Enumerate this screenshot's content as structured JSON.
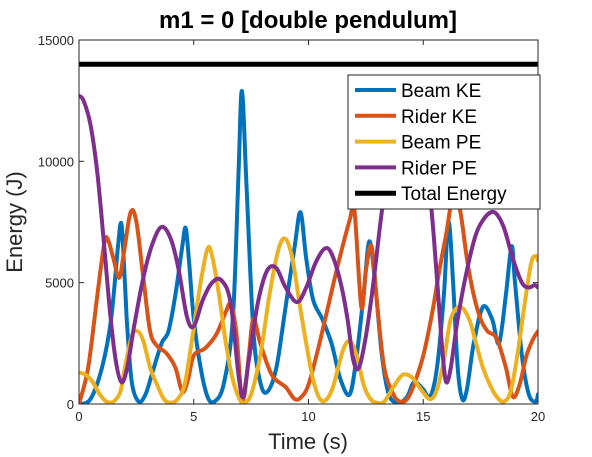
{
  "chart_data": {
    "type": "line",
    "title": "m1 = 0 [double pendulum]",
    "xlabel": "Time (s)",
    "ylabel": "Energy (J)",
    "xlim": [
      0,
      20
    ],
    "ylim": [
      0,
      15000
    ],
    "xticks": [
      0,
      5,
      10,
      15,
      20
    ],
    "yticks": [
      0,
      5000,
      10000,
      15000
    ],
    "grid": false,
    "legend_position": "top-right",
    "series": [
      {
        "name": "Beam KE",
        "color": "#0072BD",
        "points": [
          [
            0,
            0
          ],
          [
            0.5,
            200
          ],
          [
            1.0,
            1500
          ],
          [
            1.4,
            3500
          ],
          [
            1.7,
            6500
          ],
          [
            1.85,
            7400
          ],
          [
            2.0,
            5000
          ],
          [
            2.1,
            3200
          ],
          [
            2.3,
            900
          ],
          [
            2.6,
            100
          ],
          [
            2.9,
            400
          ],
          [
            3.2,
            1300
          ],
          [
            3.6,
            2500
          ],
          [
            3.9,
            3000
          ],
          [
            4.2,
            4500
          ],
          [
            4.5,
            6500
          ],
          [
            4.65,
            7250
          ],
          [
            4.8,
            5800
          ],
          [
            5.0,
            3500
          ],
          [
            5.3,
            1500
          ],
          [
            5.6,
            300
          ],
          [
            5.9,
            100
          ],
          [
            6.3,
            800
          ],
          [
            6.7,
            3500
          ],
          [
            6.95,
            9500
          ],
          [
            7.1,
            12900
          ],
          [
            7.3,
            9000
          ],
          [
            7.6,
            3000
          ],
          [
            7.9,
            900
          ],
          [
            8.2,
            500
          ],
          [
            8.6,
            1500
          ],
          [
            9.0,
            4000
          ],
          [
            9.4,
            6500
          ],
          [
            9.65,
            7900
          ],
          [
            9.9,
            6000
          ],
          [
            10.2,
            4300
          ],
          [
            10.6,
            3500
          ],
          [
            11.0,
            2500
          ],
          [
            11.4,
            1000
          ],
          [
            11.8,
            400
          ],
          [
            12.1,
            2000
          ],
          [
            12.4,
            4500
          ],
          [
            12.65,
            6700
          ],
          [
            12.9,
            5000
          ],
          [
            13.2,
            2000
          ],
          [
            13.5,
            400
          ],
          [
            13.9,
            50
          ],
          [
            14.3,
            300
          ],
          [
            14.6,
            900
          ],
          [
            15.0,
            600
          ],
          [
            15.3,
            300
          ],
          [
            15.6,
            1500
          ],
          [
            15.9,
            4500
          ],
          [
            16.1,
            7500
          ],
          [
            16.3,
            5000
          ],
          [
            16.5,
            1500
          ],
          [
            16.7,
            200
          ],
          [
            16.9,
            600
          ],
          [
            17.2,
            2500
          ],
          [
            17.6,
            4000
          ],
          [
            18.0,
            3500
          ],
          [
            18.3,
            2500
          ],
          [
            18.6,
            4500
          ],
          [
            18.85,
            6500
          ],
          [
            19.0,
            5000
          ],
          [
            19.3,
            2000
          ],
          [
            19.6,
            400
          ],
          [
            19.9,
            100
          ],
          [
            20.0,
            400
          ]
        ]
      },
      {
        "name": "Rider KE",
        "color": "#D95319",
        "points": [
          [
            0,
            0
          ],
          [
            0.4,
            1500
          ],
          [
            0.8,
            4500
          ],
          [
            1.1,
            6600
          ],
          [
            1.25,
            6800
          ],
          [
            1.5,
            6000
          ],
          [
            1.75,
            5200
          ],
          [
            1.95,
            6200
          ],
          [
            2.25,
            7900
          ],
          [
            2.5,
            7500
          ],
          [
            2.8,
            5200
          ],
          [
            3.1,
            3000
          ],
          [
            3.4,
            2400
          ],
          [
            3.8,
            2100
          ],
          [
            4.2,
            1500
          ],
          [
            4.5,
            500
          ],
          [
            4.75,
            1000
          ],
          [
            5.0,
            2000
          ],
          [
            5.5,
            2300
          ],
          [
            6.0,
            2900
          ],
          [
            6.4,
            3800
          ],
          [
            6.6,
            4100
          ],
          [
            6.85,
            3000
          ],
          [
            7.05,
            600
          ],
          [
            7.2,
            300
          ],
          [
            7.4,
            2000
          ],
          [
            7.6,
            3500
          ],
          [
            7.9,
            2500
          ],
          [
            8.4,
            1200
          ],
          [
            9.0,
            700
          ],
          [
            9.4,
            200
          ],
          [
            9.7,
            300
          ],
          [
            10.0,
            800
          ],
          [
            10.4,
            2200
          ],
          [
            10.8,
            3800
          ],
          [
            11.3,
            5800
          ],
          [
            11.8,
            7600
          ],
          [
            12.0,
            8000
          ],
          [
            12.3,
            4000
          ],
          [
            12.5,
            5500
          ],
          [
            12.75,
            6500
          ],
          [
            13.0,
            4000
          ],
          [
            13.3,
            1500
          ],
          [
            13.7,
            400
          ],
          [
            14.0,
            100
          ],
          [
            14.3,
            200
          ],
          [
            14.6,
            800
          ],
          [
            15.0,
            2000
          ],
          [
            15.4,
            3800
          ],
          [
            15.7,
            5500
          ],
          [
            16.0,
            7000
          ],
          [
            16.3,
            8600
          ],
          [
            16.6,
            8000
          ],
          [
            16.9,
            6000
          ],
          [
            17.2,
            4500
          ],
          [
            17.5,
            3500
          ],
          [
            17.8,
            3000
          ],
          [
            18.2,
            2700
          ],
          [
            18.6,
            1500
          ],
          [
            18.9,
            300
          ],
          [
            19.2,
            800
          ],
          [
            19.5,
            2000
          ],
          [
            19.8,
            2700
          ],
          [
            20.0,
            3000
          ]
        ]
      },
      {
        "name": "Beam PE",
        "color": "#EDB120",
        "points": [
          [
            0,
            1300
          ],
          [
            0.3,
            1200
          ],
          [
            0.6,
            900
          ],
          [
            0.9,
            400
          ],
          [
            1.2,
            100
          ],
          [
            1.5,
            100
          ],
          [
            1.8,
            500
          ],
          [
            2.0,
            1500
          ],
          [
            2.3,
            2800
          ],
          [
            2.55,
            3000
          ],
          [
            2.8,
            2600
          ],
          [
            3.1,
            1500
          ],
          [
            3.4,
            800
          ],
          [
            3.7,
            200
          ],
          [
            4.0,
            50
          ],
          [
            4.3,
            200
          ],
          [
            4.6,
            800
          ],
          [
            4.9,
            2500
          ],
          [
            5.3,
            5000
          ],
          [
            5.6,
            6400
          ],
          [
            5.8,
            6100
          ],
          [
            6.1,
            4500
          ],
          [
            6.4,
            2500
          ],
          [
            6.7,
            1000
          ],
          [
            7.0,
            200
          ],
          [
            7.2,
            50
          ],
          [
            7.5,
            400
          ],
          [
            7.9,
            2000
          ],
          [
            8.3,
            4500
          ],
          [
            8.7,
            6400
          ],
          [
            9.0,
            6800
          ],
          [
            9.3,
            6000
          ],
          [
            9.6,
            4200
          ],
          [
            9.9,
            2500
          ],
          [
            10.2,
            1000
          ],
          [
            10.5,
            200
          ],
          [
            10.8,
            200
          ],
          [
            11.1,
            800
          ],
          [
            11.5,
            2200
          ],
          [
            11.8,
            2600
          ],
          [
            12.1,
            2000
          ],
          [
            12.4,
            800
          ],
          [
            12.7,
            200
          ],
          [
            13.0,
            50
          ],
          [
            13.3,
            100
          ],
          [
            13.7,
            700
          ],
          [
            14.1,
            1200
          ],
          [
            14.5,
            1100
          ],
          [
            14.9,
            600
          ],
          [
            15.3,
            200
          ],
          [
            15.6,
            600
          ],
          [
            15.9,
            1800
          ],
          [
            16.2,
            3500
          ],
          [
            16.6,
            4000
          ],
          [
            17.0,
            3500
          ],
          [
            17.3,
            2500
          ],
          [
            17.6,
            1500
          ],
          [
            17.9,
            800
          ],
          [
            18.2,
            300
          ],
          [
            18.5,
            100
          ],
          [
            18.8,
            500
          ],
          [
            19.1,
            2000
          ],
          [
            19.4,
            4000
          ],
          [
            19.7,
            5800
          ],
          [
            19.9,
            6100
          ],
          [
            20.0,
            5900
          ]
        ]
      },
      {
        "name": "Rider PE",
        "color": "#7E2F8E",
        "points": [
          [
            0,
            12700
          ],
          [
            0.2,
            12500
          ],
          [
            0.5,
            11500
          ],
          [
            0.8,
            9500
          ],
          [
            1.1,
            6500
          ],
          [
            1.35,
            3800
          ],
          [
            1.6,
            1800
          ],
          [
            1.85,
            900
          ],
          [
            2.1,
            1500
          ],
          [
            2.4,
            3200
          ],
          [
            2.8,
            5200
          ],
          [
            3.2,
            6600
          ],
          [
            3.6,
            7300
          ],
          [
            4.0,
            6800
          ],
          [
            4.35,
            5500
          ],
          [
            4.7,
            3600
          ],
          [
            5.0,
            3200
          ],
          [
            5.4,
            4300
          ],
          [
            5.8,
            5000
          ],
          [
            6.2,
            5100
          ],
          [
            6.6,
            4200
          ],
          [
            6.95,
            1200
          ],
          [
            7.15,
            300
          ],
          [
            7.4,
            1800
          ],
          [
            7.8,
            4200
          ],
          [
            8.2,
            5500
          ],
          [
            8.6,
            5600
          ],
          [
            9.0,
            4800
          ],
          [
            9.5,
            4200
          ],
          [
            9.9,
            4800
          ],
          [
            10.3,
            5800
          ],
          [
            10.7,
            6400
          ],
          [
            11.0,
            6200
          ],
          [
            11.4,
            5000
          ],
          [
            11.7,
            3500
          ],
          [
            11.95,
            1800
          ],
          [
            12.2,
            1500
          ],
          [
            12.5,
            2800
          ],
          [
            12.8,
            4800
          ],
          [
            13.1,
            7200
          ],
          [
            13.4,
            9400
          ],
          [
            13.7,
            11200
          ],
          [
            14.0,
            12500
          ],
          [
            14.3,
            13200
          ],
          [
            14.6,
            13000
          ],
          [
            14.9,
            11800
          ],
          [
            15.2,
            9600
          ],
          [
            15.45,
            7000
          ],
          [
            15.65,
            4500
          ],
          [
            15.85,
            2000
          ],
          [
            16.0,
            900
          ],
          [
            16.2,
            1500
          ],
          [
            16.5,
            3500
          ],
          [
            16.9,
            5500
          ],
          [
            17.3,
            7000
          ],
          [
            17.7,
            7700
          ],
          [
            18.1,
            7900
          ],
          [
            18.5,
            7300
          ],
          [
            18.9,
            6000
          ],
          [
            19.3,
            5000
          ],
          [
            19.6,
            4800
          ],
          [
            19.85,
            4900
          ],
          [
            20.0,
            4800
          ]
        ]
      },
      {
        "name": "Total Energy",
        "color": "#000000",
        "points": [
          [
            0,
            14000
          ],
          [
            20,
            14000
          ]
        ]
      }
    ]
  }
}
